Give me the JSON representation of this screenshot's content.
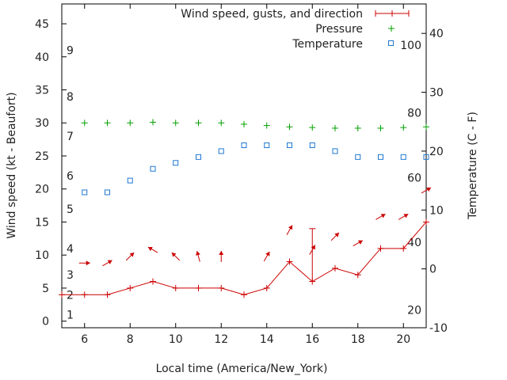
{
  "chart_data": {
    "type": "line",
    "xlabel": "Local time (America/New_York)",
    "ylabel": "Wind speed (kt - Beaufort)",
    "y2label": "Temperature (C - F)",
    "xlim": [
      5,
      21
    ],
    "ylim": [
      -1,
      48
    ],
    "y2lim": [
      -10,
      45
    ],
    "x_ticks": [
      6,
      8,
      10,
      12,
      14,
      16,
      18,
      20
    ],
    "y_ticks": [
      0,
      5,
      10,
      15,
      20,
      25,
      30,
      35,
      40,
      45
    ],
    "y2_ticks": [
      -10,
      0,
      10,
      20,
      30,
      40
    ],
    "beaufort_labels": [
      {
        "label": "1",
        "at": 1
      },
      {
        "label": "2",
        "at": 4
      },
      {
        "label": "3",
        "at": 7
      },
      {
        "label": "4",
        "at": 11
      },
      {
        "label": "5",
        "at": 17
      },
      {
        "label": "6",
        "at": 22
      },
      {
        "label": "7",
        "at": 28
      },
      {
        "label": "8",
        "at": 34
      },
      {
        "label": "9",
        "at": 41
      }
    ],
    "fahrenheit_labels": [
      {
        "label": "20",
        "at": -7
      },
      {
        "label": "40",
        "at": 4.5
      },
      {
        "label": "60",
        "at": 15.5
      },
      {
        "label": "80",
        "at": 26.5
      },
      {
        "label": "100",
        "at": 38
      }
    ],
    "legend": [
      "Wind speed, gusts, and direction",
      "Pressure",
      "Temperature"
    ],
    "legend_position": "top-right",
    "series": [
      {
        "name": "Wind speed, gusts, and direction",
        "axis": "left",
        "x": [
          5,
          6,
          7,
          8,
          9,
          10,
          11,
          12,
          13,
          14,
          15,
          16,
          17,
          18,
          19,
          20,
          21
        ],
        "values": [
          4,
          4,
          4,
          5,
          6,
          5,
          5,
          5,
          4,
          5,
          9,
          6,
          8,
          7,
          11,
          11,
          15
        ],
        "gusts": [
          null,
          null,
          null,
          null,
          null,
          null,
          null,
          null,
          null,
          null,
          null,
          14,
          null,
          null,
          null,
          null,
          null
        ],
        "direction_deg": [
          null,
          90,
          60,
          45,
          300,
          315,
          345,
          0,
          null,
          30,
          30,
          30,
          45,
          60,
          60,
          60,
          60
        ]
      },
      {
        "name": "Pressure",
        "axis": "left",
        "x": [
          6,
          7,
          8,
          9,
          10,
          11,
          12,
          13,
          14,
          15,
          16,
          17,
          18,
          19,
          20,
          21
        ],
        "values": [
          30,
          30,
          30,
          30.1,
          30,
          30,
          30,
          29.8,
          29.6,
          29.4,
          29.3,
          29.2,
          29.2,
          29.2,
          29.3,
          29.4
        ]
      },
      {
        "name": "Temperature",
        "axis": "right",
        "x": [
          6,
          7,
          8,
          9,
          10,
          11,
          12,
          13,
          14,
          15,
          16,
          17,
          18,
          19,
          20,
          21
        ],
        "values": [
          13,
          13,
          15,
          17,
          18,
          19,
          20,
          21,
          21,
          21,
          21,
          20,
          19,
          19,
          19,
          19
        ]
      }
    ]
  }
}
